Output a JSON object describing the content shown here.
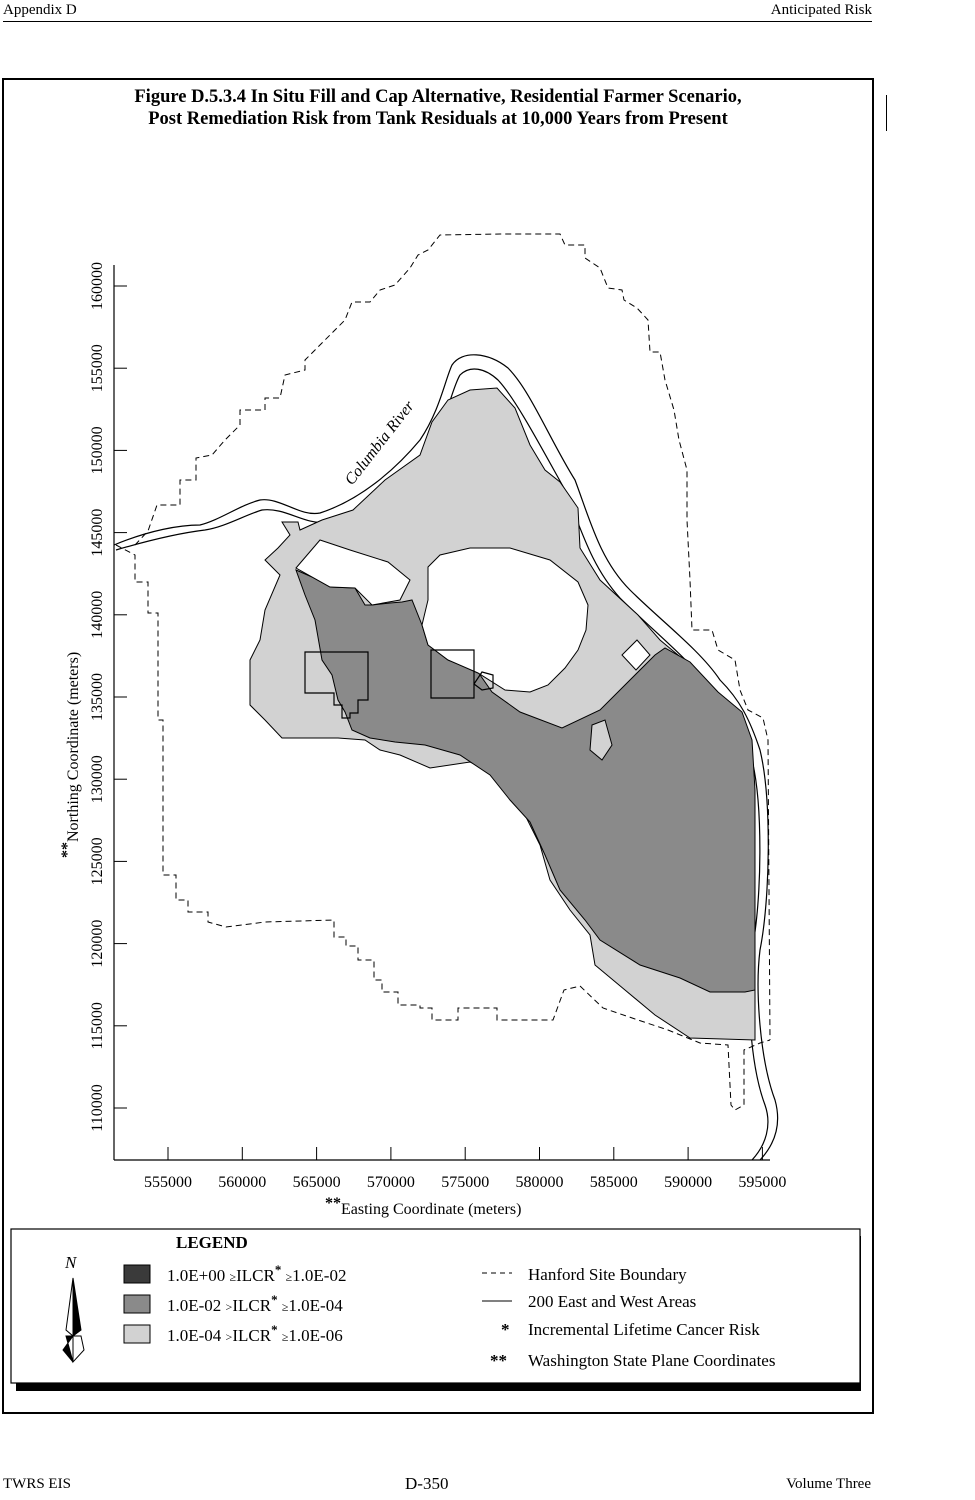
{
  "header": {
    "left": "Appendix D",
    "right": "Anticipated Risk"
  },
  "figure": {
    "title_line1": "Figure D.5.3.4  In Situ Fill and Cap Alternative, Residential Farmer Scenario,",
    "title_line2": "Post Remediation Risk from Tank Residuals at 10,000 Years from Present"
  },
  "map": {
    "river_label": "Columbia River",
    "x_axis": {
      "label_prefix": "**",
      "label": "Easting Coordinate (meters)",
      "ticks": [
        "555000",
        "560000",
        "565000",
        "570000",
        "575000",
        "580000",
        "585000",
        "590000",
        "595000"
      ]
    },
    "y_axis": {
      "label_prefix": "**",
      "label": "Northing Coordinate (meters)",
      "ticks": [
        "110000",
        "115000",
        "120000",
        "125000",
        "130000",
        "135000",
        "140000",
        "145000",
        "150000",
        "155000",
        "160000"
      ]
    },
    "colors": {
      "high": "#3a3a3a",
      "medium": "#8a8a8a",
      "low": "#d2d2d2"
    }
  },
  "legend": {
    "title": "LEGEND",
    "north_symbol": "N",
    "risk_classes": [
      {
        "upper": "1.0E+00",
        "op1": "≥",
        "ilcr": "ILCR",
        "star": "*",
        "op2": "≥",
        "lower": "1.0E-02"
      },
      {
        "upper": "1.0E-02",
        "op1": ">",
        "ilcr": "ILCR",
        "star": "*",
        "op2": "≥",
        "lower": "1.0E-04"
      },
      {
        "upper": "1.0E-04",
        "op1": ">",
        "ilcr": "ILCR",
        "star": "*",
        "op2": "≥",
        "lower": "1.0E-06"
      }
    ],
    "symbols": [
      {
        "label": "Hanford Site Boundary"
      },
      {
        "label": "200 East and West Areas"
      },
      {
        "symbol": "*",
        "label": "Incremental Lifetime Cancer Risk"
      },
      {
        "symbol": "**",
        "label": "Washington State Plane Coordinates"
      }
    ]
  },
  "footer": {
    "left": "TWRS EIS",
    "center": "D-350",
    "right": "Volume Three"
  }
}
